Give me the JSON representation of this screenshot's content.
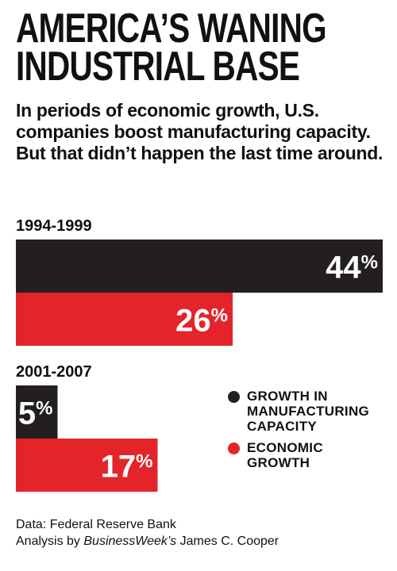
{
  "title_lines": [
    "AMERICA’S WANING",
    "INDUSTRIAL BASE"
  ],
  "subtitle": "In periods of economic growth, U.S. companies boost manufacturing capacity. But that didn’t happen the last time around.",
  "colors": {
    "capacity": "#231f20",
    "growth": "#e3242b"
  },
  "chart_data": {
    "type": "bar",
    "orientation": "horizontal",
    "categories": [
      "1994-1999",
      "2001-2007"
    ],
    "series": [
      {
        "name": "GROWTH IN MANUFACTURING CAPACITY",
        "values": [
          44,
          5
        ],
        "labels": [
          "44%",
          "5%"
        ]
      },
      {
        "name": "ECONOMIC GROWTH",
        "values": [
          26,
          17
        ],
        "labels": [
          "26%",
          "17%"
        ]
      }
    ],
    "unit": "%",
    "legend_position": "right"
  },
  "legend": [
    {
      "label": "GROWTH IN\nMANUFACTURING\nCAPACITY"
    },
    {
      "label": "ECONOMIC\nGROWTH"
    }
  ],
  "source": {
    "line1": "Data: Federal Reserve Bank",
    "line2_prefix": "Analysis by ",
    "line2_italic": "BusinessWeek’s",
    "line2_suffix": " James C. Cooper"
  }
}
